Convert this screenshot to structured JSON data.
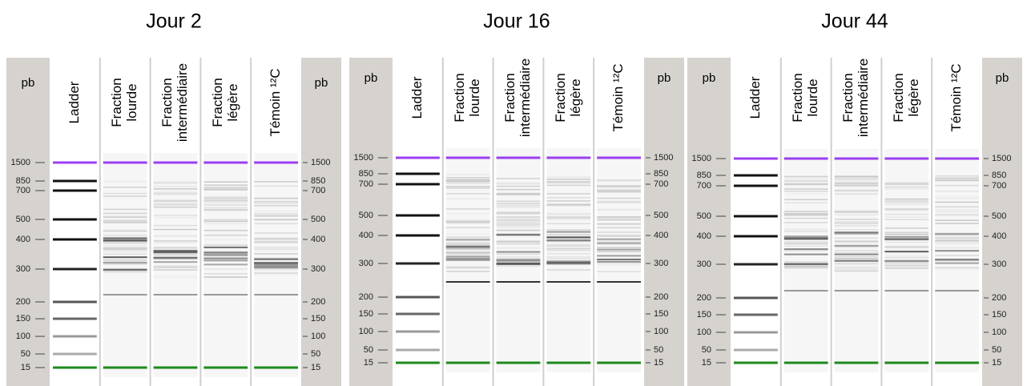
{
  "panels": [
    {
      "title": "Jour 2",
      "unit": "pb",
      "lanes": [
        [
          "Ladder"
        ],
        [
          "Fraction",
          "lourde"
        ],
        [
          "Fraction",
          "intermédiaire"
        ],
        [
          "Fraction",
          "légère"
        ],
        [
          "Témoin ¹²C"
        ]
      ],
      "sizes": [
        1500,
        850,
        700,
        500,
        400,
        300,
        200,
        150,
        100,
        50,
        15
      ]
    },
    {
      "title": "Jour 16",
      "unit": "pb",
      "lanes": [
        [
          "Ladder"
        ],
        [
          "Fraction",
          "lourde"
        ],
        [
          "Fraction",
          "intermédiaire"
        ],
        [
          "Fraction",
          "légère"
        ],
        [
          "Témoin ¹²C"
        ]
      ],
      "sizes": [
        1500,
        850,
        700,
        500,
        400,
        300,
        200,
        150,
        100,
        50,
        15
      ]
    },
    {
      "title": "Jour 44",
      "unit": "pb",
      "lanes": [
        [
          "Ladder"
        ],
        [
          "Fraction",
          "lourde"
        ],
        [
          "Fraction",
          "intermédiaire"
        ],
        [
          "Fraction",
          "légère"
        ],
        [
          "Témoin ¹²C"
        ]
      ],
      "sizes": [
        1500,
        850,
        700,
        500,
        400,
        300,
        200,
        150,
        100,
        50,
        15
      ]
    }
  ]
}
